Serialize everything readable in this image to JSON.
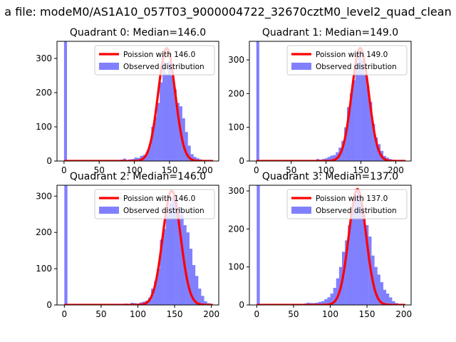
{
  "figure": {
    "suptitle": "a file: modeM0/AS1A10_057T03_9000004722_32670cztM0_level2_quad_clean"
  },
  "colors": {
    "poisson": "#ff0000",
    "observed": "#8080ff",
    "axis": "#000000"
  },
  "chart_data": [
    {
      "type": "bar",
      "title": "Quadrant 0: Median=146.0",
      "xlim": [
        -10,
        220
      ],
      "ylim": [
        0,
        350
      ],
      "xticks": [
        0,
        50,
        100,
        150,
        200
      ],
      "yticks": [
        0,
        100,
        200,
        300
      ],
      "legend": {
        "location": "upper right",
        "entries": [
          "Poission with 146.0",
          "Observed distribution"
        ]
      },
      "series": [
        {
          "name": "Poission with 146.0",
          "kind": "line",
          "mean": 146.0,
          "peak": 330
        },
        {
          "name": "Observed distribution",
          "kind": "hist",
          "bin_width": 4.2,
          "bins": [
            [
              0,
              350
            ],
            [
              80,
              4
            ],
            [
              84,
              7
            ],
            [
              88,
              3
            ],
            [
              92,
              5
            ],
            [
              96,
              6
            ],
            [
              100,
              10
            ],
            [
              104,
              9
            ],
            [
              108,
              15
            ],
            [
              112,
              18
            ],
            [
              116,
              25
            ],
            [
              120,
              45
            ],
            [
              124,
              100
            ],
            [
              128,
              130
            ],
            [
              132,
              170
            ],
            [
              136,
              230
            ],
            [
              140,
              290
            ],
            [
              144,
              255
            ],
            [
              148,
              290
            ],
            [
              152,
              250
            ],
            [
              156,
              210
            ],
            [
              160,
              170
            ],
            [
              164,
              160
            ],
            [
              168,
              125
            ],
            [
              172,
              85
            ],
            [
              176,
              45
            ],
            [
              180,
              20
            ],
            [
              184,
              12
            ],
            [
              188,
              8
            ],
            [
              192,
              5
            ],
            [
              196,
              3
            ],
            [
              200,
              2
            ],
            [
              204,
              2
            ]
          ]
        }
      ]
    },
    {
      "type": "bar",
      "title": "Quadrant 1: Median=149.0",
      "xlim": [
        -10,
        222
      ],
      "ylim": [
        0,
        355
      ],
      "xticks": [
        0,
        50,
        100,
        150,
        200
      ],
      "yticks": [
        0,
        100,
        200,
        300
      ],
      "legend": {
        "location": "upper right",
        "entries": [
          "Poission with 149.0",
          "Observed distribution"
        ]
      },
      "series": [
        {
          "name": "Poission with 149.0",
          "kind": "line",
          "mean": 149.0,
          "peak": 335
        },
        {
          "name": "Observed distribution",
          "kind": "hist",
          "bin_width": 4.2,
          "bins": [
            [
              0,
              355
            ],
            [
              82,
              3
            ],
            [
              86,
              6
            ],
            [
              90,
              4
            ],
            [
              94,
              6
            ],
            [
              98,
              8
            ],
            [
              102,
              12
            ],
            [
              106,
              16
            ],
            [
              110,
              18
            ],
            [
              114,
              26
            ],
            [
              118,
              40
            ],
            [
              122,
              60
            ],
            [
              126,
              100
            ],
            [
              130,
              160
            ],
            [
              134,
              200
            ],
            [
              138,
              240
            ],
            [
              142,
              290
            ],
            [
              146,
              320
            ],
            [
              150,
              300
            ],
            [
              154,
              260
            ],
            [
              158,
              220
            ],
            [
              162,
              175
            ],
            [
              166,
              110
            ],
            [
              170,
              70
            ],
            [
              174,
              50
            ],
            [
              178,
              30
            ],
            [
              182,
              15
            ],
            [
              186,
              10
            ],
            [
              190,
              6
            ],
            [
              194,
              4
            ]
          ]
        }
      ]
    },
    {
      "type": "bar",
      "title": "Quadrant 2: Median=146.0",
      "xlim": [
        -10,
        210
      ],
      "ylim": [
        0,
        330
      ],
      "xticks": [
        0,
        50,
        100,
        150,
        200
      ],
      "yticks": [
        0,
        100,
        200,
        300
      ],
      "legend": {
        "location": "upper right",
        "entries": [
          "Poission with 146.0",
          "Observed distribution"
        ]
      },
      "series": [
        {
          "name": "Poission with 146.0",
          "kind": "line",
          "mean": 146.0,
          "peak": 315
        },
        {
          "name": "Observed distribution",
          "kind": "hist",
          "bin_width": 4.2,
          "bins": [
            [
              0,
              330
            ],
            [
              82,
              4
            ],
            [
              86,
              3
            ],
            [
              90,
              6
            ],
            [
              94,
              5
            ],
            [
              98,
              4
            ],
            [
              102,
              7
            ],
            [
              106,
              9
            ],
            [
              110,
              12
            ],
            [
              114,
              20
            ],
            [
              118,
              45
            ],
            [
              122,
              65
            ],
            [
              126,
              100
            ],
            [
              130,
              180
            ],
            [
              134,
              210
            ],
            [
              138,
              250
            ],
            [
              142,
              280
            ],
            [
              146,
              300
            ],
            [
              150,
              290
            ],
            [
              154,
              270
            ],
            [
              158,
              250
            ],
            [
              162,
              220
            ],
            [
              166,
              200
            ],
            [
              170,
              155
            ],
            [
              174,
              110
            ],
            [
              178,
              80
            ],
            [
              182,
              45
            ],
            [
              186,
              25
            ],
            [
              190,
              10
            ],
            [
              194,
              5
            ]
          ]
        }
      ]
    },
    {
      "type": "bar",
      "title": "Quadrant 3: Median=137.0",
      "xlim": [
        -10,
        210
      ],
      "ylim": [
        0,
        315
      ],
      "xticks": [
        0,
        50,
        100,
        150,
        200
      ],
      "yticks": [
        0,
        100,
        200,
        300
      ],
      "legend": {
        "location": "upper right",
        "entries": [
          "Poission with 137.0",
          "Observed distribution"
        ]
      },
      "series": [
        {
          "name": "Poission with 137.0",
          "kind": "line",
          "mean": 137.0,
          "peak": 305
        },
        {
          "name": "Observed distribution",
          "kind": "hist",
          "bin_width": 4.2,
          "bins": [
            [
              0,
              315
            ],
            [
              64,
              4
            ],
            [
              68,
              6
            ],
            [
              72,
              5
            ],
            [
              76,
              5
            ],
            [
              80,
              6
            ],
            [
              84,
              8
            ],
            [
              88,
              10
            ],
            [
              92,
              15
            ],
            [
              96,
              20
            ],
            [
              100,
              30
            ],
            [
              104,
              45
            ],
            [
              108,
              70
            ],
            [
              112,
              100
            ],
            [
              116,
              140
            ],
            [
              120,
              170
            ],
            [
              124,
              210
            ],
            [
              128,
              250
            ],
            [
              132,
              280
            ],
            [
              136,
              300
            ],
            [
              140,
              280
            ],
            [
              144,
              240
            ],
            [
              148,
              210
            ],
            [
              152,
              180
            ],
            [
              156,
              130
            ],
            [
              160,
              100
            ],
            [
              164,
              80
            ],
            [
              168,
              60
            ],
            [
              172,
              40
            ],
            [
              176,
              30
            ],
            [
              180,
              20
            ],
            [
              184,
              10
            ],
            [
              188,
              5
            ]
          ]
        }
      ]
    }
  ]
}
